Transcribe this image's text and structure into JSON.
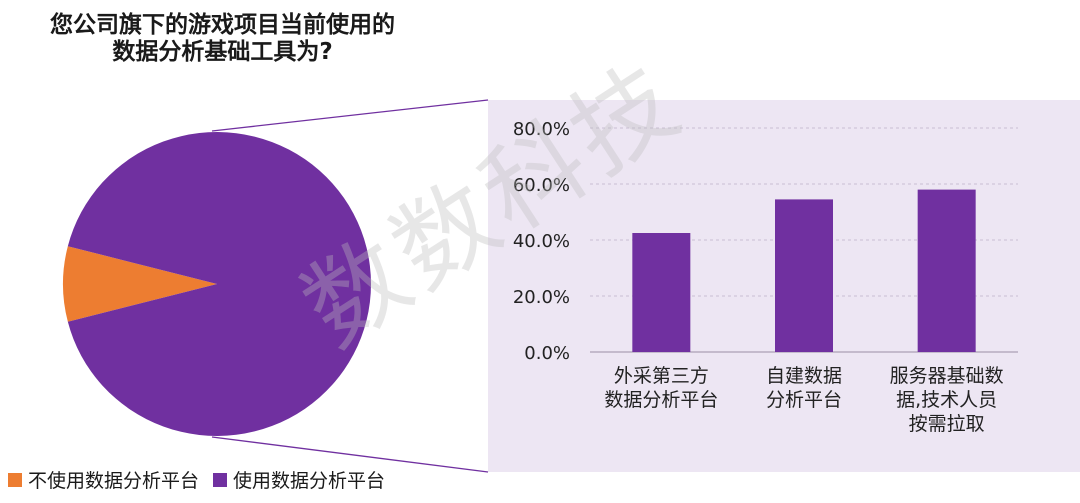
{
  "title_lines": [
    "您公司旗下的游戏项目当前使用的",
    "数据分析基础工具为?"
  ],
  "watermark": "数数科技",
  "colors": {
    "purple": "#7030a0",
    "orange": "#ed7d31",
    "panel_bg": "#ede6f3",
    "grid": "#c9bfd3"
  },
  "legend": [
    {
      "label": "不使用数据分析平台",
      "color": "#ed7d31"
    },
    {
      "label": "使用数据分析平台",
      "color": "#7030a0"
    }
  ],
  "chart_data": [
    {
      "type": "pie",
      "slices": [
        {
          "label": "不使用数据分析平台",
          "value": 8,
          "color": "#ed7d31"
        },
        {
          "label": "使用数据分析平台",
          "value": 92,
          "color": "#7030a0"
        }
      ]
    },
    {
      "type": "bar",
      "categories": [
        [
          "外采第三方",
          "数据分析平台"
        ],
        [
          "自建数据",
          "分析平台"
        ],
        [
          "服务器基础数",
          "据,技术人员",
          "按需拉取"
        ]
      ],
      "values": [
        42.5,
        54.5,
        58.0
      ],
      "ylim": [
        0,
        80
      ],
      "yticks": [
        "0.0%",
        "20.0%",
        "40.0%",
        "60.0%",
        "80.0%"
      ],
      "ytick_values": [
        0,
        20,
        40,
        60,
        80
      ],
      "color": "#7030a0",
      "grid": true
    }
  ]
}
